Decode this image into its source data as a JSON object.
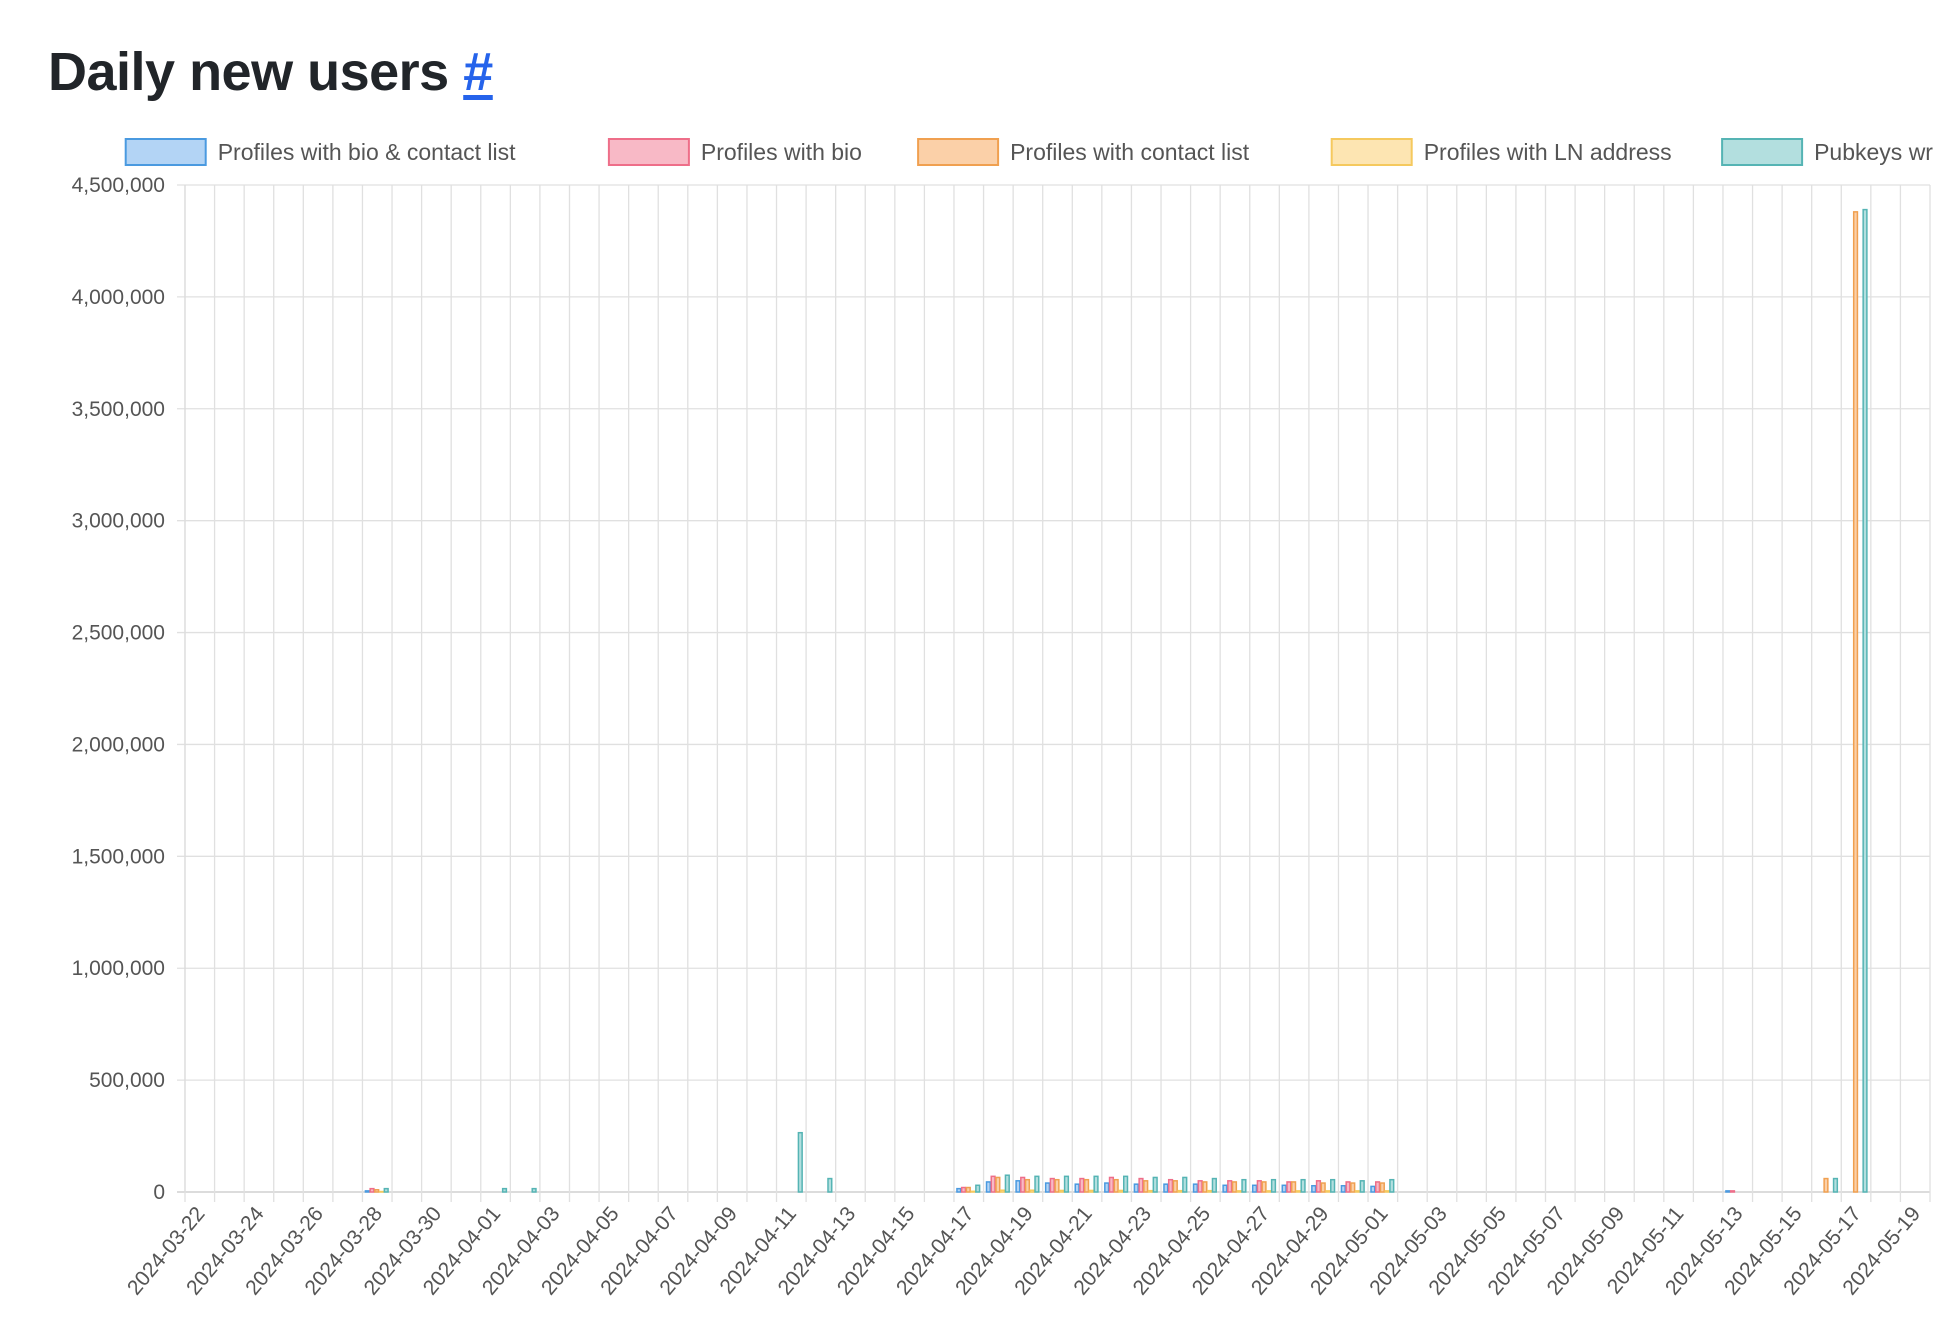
{
  "header": {
    "title": "Daily new users",
    "anchor": "#"
  },
  "colors": {
    "grid": "#e0e0e0",
    "axis": "#c8c8c8",
    "series": [
      {
        "fill": "#b3d4f5",
        "stroke": "#4a9ae0"
      },
      {
        "fill": "#f8b9c6",
        "stroke": "#ee6e89"
      },
      {
        "fill": "#fbd0a8",
        "stroke": "#f0a050"
      },
      {
        "fill": "#fde5b2",
        "stroke": "#f5c95e"
      },
      {
        "fill": "#b3dfdf",
        "stroke": "#55b4b4"
      }
    ]
  },
  "chart_data": {
    "type": "bar",
    "title": "",
    "xlabel": "",
    "ylabel": "",
    "ylim": [
      0,
      4500000
    ],
    "yticks": [
      0,
      500000,
      1000000,
      1500000,
      2000000,
      2500000,
      3000000,
      3500000,
      4000000,
      4500000
    ],
    "ytick_labels": [
      "0",
      "500,000",
      "1,000,000",
      "1,500,000",
      "2,000,000",
      "2,500,000",
      "3,000,000",
      "3,500,000",
      "4,000,000",
      "4,500,000"
    ],
    "xtick_labels": [
      "2024-03-22",
      "2024-03-24",
      "2024-03-26",
      "2024-03-28",
      "2024-03-30",
      "2024-04-01",
      "2024-04-03",
      "2024-04-05",
      "2024-04-07",
      "2024-04-09",
      "2024-04-11",
      "2024-04-13",
      "2024-04-15",
      "2024-04-17",
      "2024-04-19",
      "2024-04-21",
      "2024-04-23",
      "2024-04-25",
      "2024-04-27",
      "2024-04-29",
      "2024-05-01",
      "2024-05-03",
      "2024-05-05",
      "2024-05-07",
      "2024-05-09",
      "2024-05-11",
      "2024-05-13",
      "2024-05-15",
      "2024-05-17",
      "2024-05-19"
    ],
    "grid": true,
    "legend": "top",
    "categories": [
      "2024-03-22",
      "2024-03-23",
      "2024-03-24",
      "2024-03-25",
      "2024-03-26",
      "2024-03-27",
      "2024-03-28",
      "2024-03-29",
      "2024-03-30",
      "2024-03-31",
      "2024-04-01",
      "2024-04-02",
      "2024-04-03",
      "2024-04-04",
      "2024-04-05",
      "2024-04-06",
      "2024-04-07",
      "2024-04-08",
      "2024-04-09",
      "2024-04-10",
      "2024-04-11",
      "2024-04-12",
      "2024-04-13",
      "2024-04-14",
      "2024-04-15",
      "2024-04-16",
      "2024-04-17",
      "2024-04-18",
      "2024-04-19",
      "2024-04-20",
      "2024-04-21",
      "2024-04-22",
      "2024-04-23",
      "2024-04-24",
      "2024-04-25",
      "2024-04-26",
      "2024-04-27",
      "2024-04-28",
      "2024-04-29",
      "2024-04-30",
      "2024-05-01",
      "2024-05-02",
      "2024-05-03",
      "2024-05-04",
      "2024-05-05",
      "2024-05-06",
      "2024-05-07",
      "2024-05-08",
      "2024-05-09",
      "2024-05-10",
      "2024-05-11",
      "2024-05-12",
      "2024-05-13",
      "2024-05-14",
      "2024-05-15",
      "2024-05-16",
      "2024-05-17",
      "2024-05-18",
      "2024-05-19"
    ],
    "series": [
      {
        "name": "Profiles with bio & contact list",
        "values": [
          0,
          0,
          0,
          0,
          0,
          0,
          5000,
          0,
          0,
          0,
          0,
          0,
          0,
          0,
          0,
          0,
          0,
          0,
          0,
          0,
          0,
          0,
          0,
          0,
          0,
          0,
          15000,
          45000,
          50000,
          40000,
          35000,
          40000,
          35000,
          35000,
          35000,
          30000,
          30000,
          30000,
          28000,
          28000,
          25000,
          0,
          0,
          0,
          0,
          0,
          0,
          0,
          0,
          0,
          0,
          0,
          5000,
          0,
          0,
          0,
          0,
          0,
          0
        ]
      },
      {
        "name": "Profiles with bio",
        "values": [
          0,
          0,
          0,
          0,
          0,
          0,
          15000,
          0,
          0,
          0,
          0,
          0,
          0,
          0,
          0,
          0,
          0,
          0,
          0,
          0,
          0,
          0,
          0,
          0,
          0,
          0,
          20000,
          70000,
          65000,
          60000,
          60000,
          65000,
          60000,
          55000,
          50000,
          50000,
          50000,
          45000,
          50000,
          45000,
          45000,
          0,
          0,
          0,
          0,
          0,
          0,
          0,
          0,
          0,
          0,
          0,
          5000,
          0,
          0,
          0,
          0,
          0,
          0
        ]
      },
      {
        "name": "Profiles with contact list",
        "values": [
          0,
          0,
          0,
          0,
          0,
          0,
          10000,
          0,
          0,
          0,
          0,
          0,
          0,
          0,
          0,
          0,
          0,
          0,
          0,
          0,
          0,
          0,
          0,
          0,
          0,
          0,
          20000,
          65000,
          55000,
          55000,
          55000,
          55000,
          50000,
          50000,
          45000,
          45000,
          45000,
          45000,
          40000,
          40000,
          40000,
          0,
          0,
          0,
          0,
          0,
          0,
          0,
          0,
          0,
          0,
          0,
          0,
          0,
          0,
          60000,
          4380000,
          0,
          0
        ]
      },
      {
        "name": "Profiles with LN address",
        "values": [
          0,
          0,
          0,
          0,
          0,
          0,
          2000,
          0,
          0,
          0,
          0,
          0,
          0,
          0,
          0,
          0,
          0,
          0,
          0,
          0,
          0,
          0,
          0,
          0,
          0,
          0,
          3000,
          8000,
          8000,
          7000,
          7000,
          7000,
          6000,
          6000,
          6000,
          5000,
          5000,
          5000,
          5000,
          5000,
          5000,
          0,
          0,
          0,
          0,
          0,
          0,
          0,
          0,
          0,
          0,
          0,
          0,
          0,
          0,
          0,
          0,
          0,
          0
        ]
      },
      {
        "name": "Pubkeys writing events",
        "values": [
          0,
          0,
          0,
          0,
          0,
          0,
          15000,
          0,
          0,
          0,
          15000,
          15000,
          0,
          0,
          0,
          0,
          0,
          0,
          0,
          0,
          265000,
          60000,
          0,
          0,
          0,
          0,
          30000,
          75000,
          70000,
          70000,
          70000,
          70000,
          65000,
          65000,
          60000,
          55000,
          55000,
          55000,
          55000,
          50000,
          55000,
          0,
          0,
          0,
          0,
          0,
          0,
          0,
          0,
          0,
          0,
          0,
          0,
          0,
          0,
          60000,
          4390000,
          0,
          0
        ]
      }
    ]
  }
}
